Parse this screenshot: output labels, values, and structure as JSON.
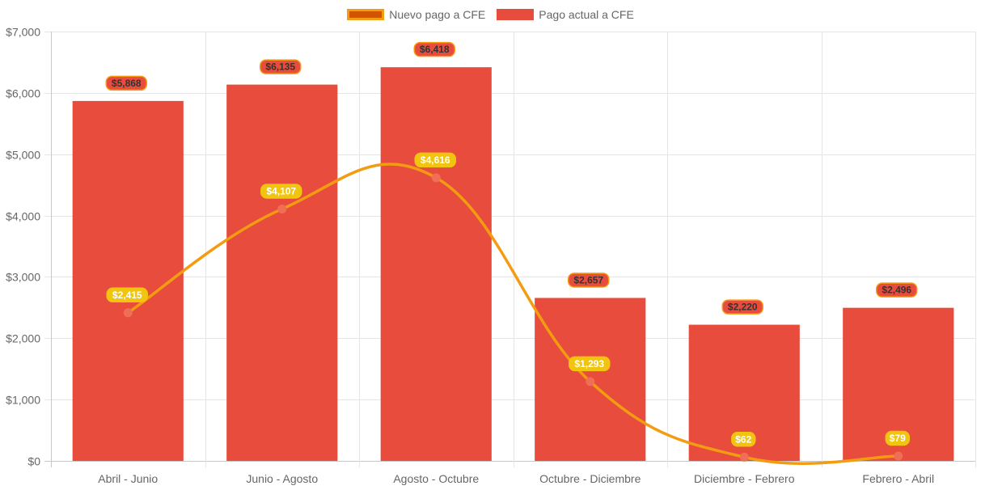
{
  "chart_data": {
    "type": "bar",
    "categories": [
      "Abril - Junio",
      "Junio - Agosto",
      "Agosto - Octubre",
      "Octubre - Diciembre",
      "Diciembre - Febrero",
      "Febrero - Abril"
    ],
    "series": [
      {
        "name": "Nuevo pago a CFE",
        "type": "line",
        "values": [
          2415,
          4107,
          4616,
          1293,
          62,
          79
        ],
        "labels": [
          "$2,415",
          "$4,107",
          "$4,616",
          "$1,293",
          "$62",
          "$79"
        ],
        "color": "#f39c12",
        "point_color": "#f06e55",
        "label_bg": "#f1c40f",
        "label_text_color": "#ffffff"
      },
      {
        "name": "Pago actual a CFE",
        "type": "bar",
        "values": [
          5868,
          6135,
          6418,
          2657,
          2220,
          2496
        ],
        "labels": [
          "$5,868",
          "$6,135",
          "$6,418",
          "$2,657",
          "$2,220",
          "$2,496"
        ],
        "color": "#e74c3c",
        "label_bg": "#e74c3c",
        "label_border": "#f39c12",
        "label_text_color": "#333333"
      }
    ],
    "y_ticks": [
      "$0",
      "$1,000",
      "$2,000",
      "$3,000",
      "$4,000",
      "$5,000",
      "$6,000",
      "$7,000"
    ],
    "ylim": [
      0,
      7000
    ],
    "grid": true,
    "legend_position": "top",
    "legend": [
      {
        "label": "Nuevo pago a CFE",
        "fill": "#d35400",
        "border": "#f39c12"
      },
      {
        "label": "Pago actual a CFE",
        "fill": "#e74c3c",
        "border": "#e74c3c"
      }
    ]
  }
}
